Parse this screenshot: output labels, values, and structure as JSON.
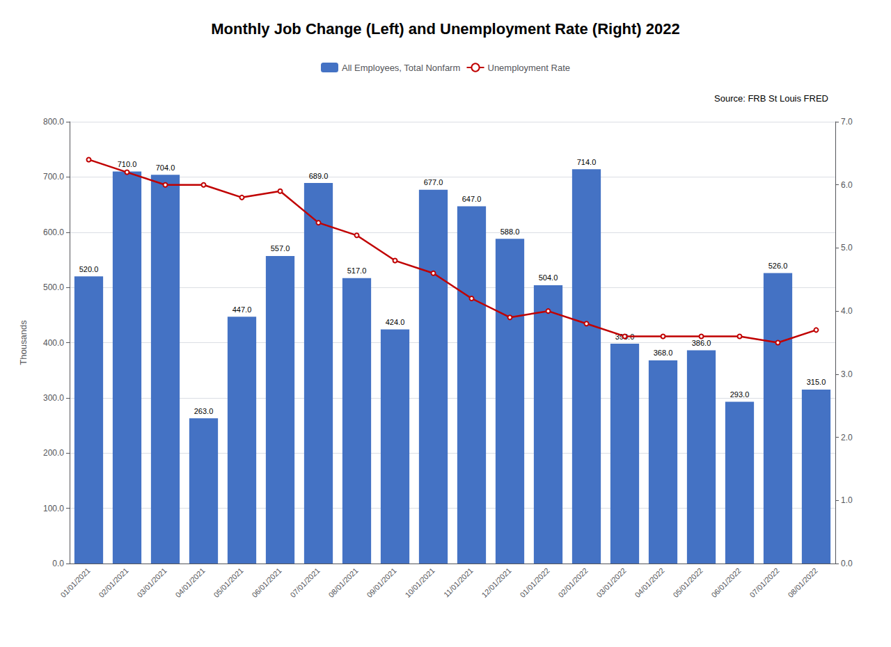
{
  "chart_data": {
    "type": "bar",
    "title": "Monthly Job Change (Left) and Unemployment Rate (Right) 2022",
    "ylabel": "Thousands",
    "annotations": [
      "Source: FRB St Louis FRED"
    ],
    "categories": [
      "01/01/2021",
      "02/01/2021",
      "03/01/2021",
      "04/01/2021",
      "05/01/2021",
      "06/01/2021",
      "07/01/2021",
      "08/01/2021",
      "09/01/2021",
      "10/01/2021",
      "11/01/2021",
      "12/01/2021",
      "01/01/2022",
      "02/01/2022",
      "03/01/2022",
      "04/01/2022",
      "05/01/2022",
      "06/01/2022",
      "07/01/2022",
      "08/01/2022"
    ],
    "series": [
      {
        "name": "All Employees, Total Nonfarm",
        "type": "bar",
        "color": "#4472C4",
        "data_labels": true,
        "values": [
          520.0,
          710.0,
          704.0,
          263.0,
          447.0,
          557.0,
          689.0,
          517.0,
          424.0,
          677.0,
          647.0,
          588.0,
          504.0,
          714.0,
          398.0,
          368.0,
          386.0,
          293.0,
          526.0,
          315.0
        ],
        "value_labels": [
          "520.0",
          "710.0",
          "704.0",
          "263.0",
          "447.0",
          "557.0",
          "689.0",
          "517.0",
          "424.0",
          "677.0",
          "647.0",
          "588.0",
          "504.0",
          "714.0",
          "398.0",
          "368.0",
          "386.0",
          "293.0",
          "526.0",
          "315.0"
        ]
      },
      {
        "name": "Unemployment Rate",
        "type": "line",
        "color": "#C00000",
        "axis": "y2",
        "values": [
          6.4,
          6.2,
          6.0,
          6.0,
          5.8,
          5.9,
          5.4,
          5.2,
          4.8,
          4.6,
          4.2,
          3.9,
          4.0,
          3.8,
          3.6,
          3.6,
          3.6,
          3.6,
          3.5,
          3.7
        ]
      }
    ],
    "ylim": [
      0,
      800
    ],
    "yticks": [
      {
        "value": 0,
        "label": "0.0"
      },
      {
        "value": 100,
        "label": "100.0"
      },
      {
        "value": 200,
        "label": "200.0"
      },
      {
        "value": 300,
        "label": "300.0"
      },
      {
        "value": 400,
        "label": "400.0"
      },
      {
        "value": 500,
        "label": "500.0"
      },
      {
        "value": 600,
        "label": "600.0"
      },
      {
        "value": 700,
        "label": "700.0"
      },
      {
        "value": 800,
        "label": "800.0"
      }
    ],
    "y2lim": [
      0,
      7.0
    ],
    "y2ticks": [
      {
        "value": 0.0,
        "label": "0.0"
      },
      {
        "value": 1.0,
        "label": "1.0"
      },
      {
        "value": 2.0,
        "label": "2.0"
      },
      {
        "value": 3.0,
        "label": "3.0"
      },
      {
        "value": 4.0,
        "label": "4.0"
      },
      {
        "value": 5.0,
        "label": "5.0"
      },
      {
        "value": 6.0,
        "label": "6.0"
      },
      {
        "value": 7.0,
        "label": "7.0"
      }
    ],
    "grid": true,
    "legend": "top"
  }
}
